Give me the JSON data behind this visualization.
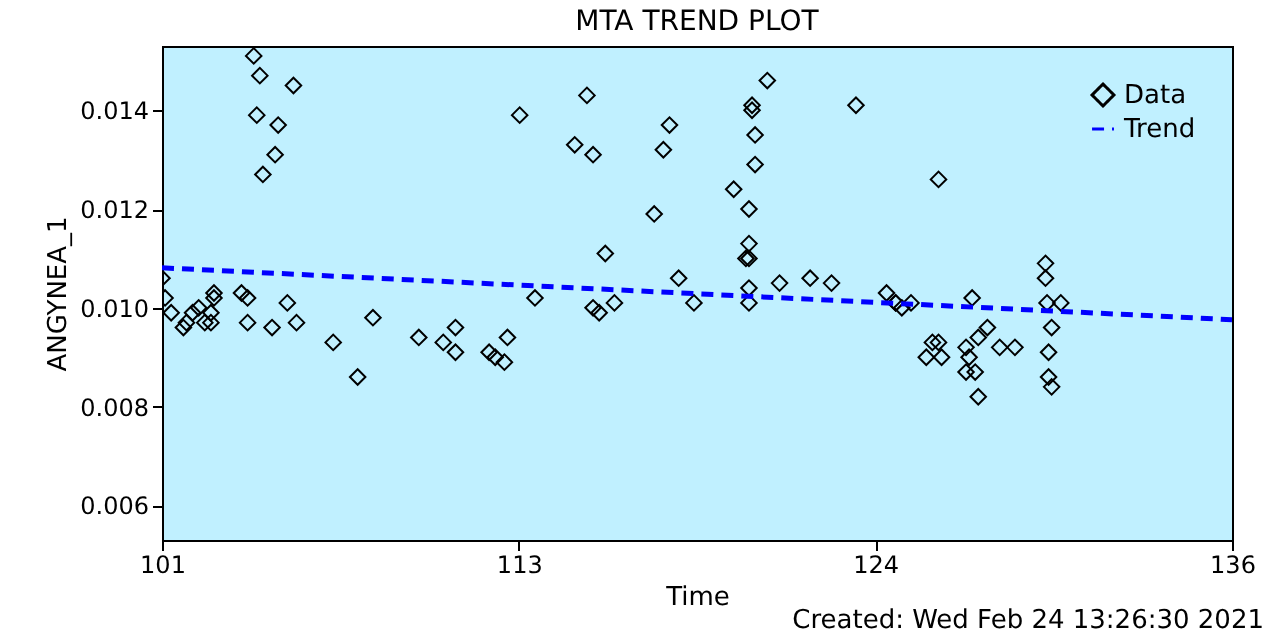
{
  "chart_data": {
    "type": "scatter",
    "title": "MTA TREND PLOT",
    "xlabel": "Time",
    "ylabel": "ANGYNEA_1",
    "annotations": [
      "Created: Wed Feb 24 13:26:30 2021"
    ],
    "xlim": [
      101,
      136
    ],
    "xticks": [
      101,
      {
        "value": 112.67,
        "label": "113"
      },
      {
        "value": 124.33,
        "label": "124"
      },
      136
    ],
    "ylim": [
      0.0053,
      0.0153
    ],
    "yticks": [
      0.006,
      0.008,
      {
        "value": 0.01,
        "label": "0.010"
      },
      0.012,
      0.014
    ],
    "grid": false,
    "legend": "top right",
    "series": [
      {
        "name": "Data",
        "color": "#000000",
        "marker": "diamond",
        "x": [
          101.0,
          101.1,
          101.3,
          101.7,
          101.8,
          102.0,
          102.2,
          102.4,
          102.6,
          102.7,
          102.7,
          102.6,
          103.6,
          103.8,
          103.8,
          104.0,
          104.2,
          104.1,
          104.3,
          104.7,
          104.8,
          105.3,
          104.6,
          105.1,
          105.4,
          106.6,
          107.4,
          107.9,
          109.4,
          110.2,
          110.6,
          110.6,
          111.7,
          111.9,
          112.2,
          112.3,
          112.7,
          113.2,
          114.9,
          114.5,
          115.1,
          115.5,
          115.1,
          115.3,
          115.8,
          117.1,
          117.4,
          117.6,
          117.9,
          118.4,
          119.7,
          120.2,
          120.2,
          120.1,
          120.2,
          120.2,
          120.2,
          120.3,
          120.3,
          120.4,
          120.4,
          120.8,
          121.2,
          122.2,
          122.9,
          123.7,
          124.7,
          125.0,
          125.0,
          125.2,
          125.5,
          126.4,
          126.2,
          126.4,
          126.0,
          126.5,
          127.5,
          128.0,
          127.7,
          127.3,
          127.4,
          127.3,
          127.6,
          127.7,
          128.4,
          128.9,
          129.9,
          129.9,
          129.95,
          130.4,
          130.1,
          130.0,
          130.0,
          130.1
        ],
        "values": [
          0.0106,
          0.0102,
          0.0099,
          0.0096,
          0.0097,
          0.0099,
          0.01,
          0.0097,
          0.0099,
          0.0102,
          0.0103,
          0.0097,
          0.0103,
          0.0102,
          0.0097,
          0.0151,
          0.0147,
          0.0139,
          0.0127,
          0.0131,
          0.0137,
          0.0145,
          0.0096,
          0.0101,
          0.0097,
          0.0093,
          0.0086,
          0.0098,
          0.0094,
          0.0093,
          0.0096,
          0.0091,
          0.0091,
          0.009,
          0.0089,
          0.0094,
          0.0139,
          0.0102,
          0.0143,
          0.0133,
          0.0131,
          0.0111,
          0.01,
          0.0099,
          0.0101,
          0.0119,
          0.0132,
          0.0137,
          0.0106,
          0.0101,
          0.0124,
          0.012,
          0.0113,
          0.011,
          0.011,
          0.0104,
          0.0101,
          0.0141,
          0.014,
          0.0135,
          0.0129,
          0.0146,
          0.0105,
          0.0106,
          0.0105,
          0.0141,
          0.0103,
          0.0101,
          0.0101,
          0.01,
          0.0101,
          0.0126,
          0.0093,
          0.0093,
          0.009,
          0.009,
          0.0102,
          0.0096,
          0.0094,
          0.0092,
          0.009,
          0.0087,
          0.0087,
          0.0082,
          0.0092,
          0.0092,
          0.0109,
          0.0106,
          0.0101,
          0.0101,
          0.0096,
          0.0091,
          0.0086,
          0.0084
        ]
      },
      {
        "name": "Trend",
        "color": "#0000ff",
        "type": "line",
        "marker": "none",
        "line_style": "dashed",
        "x": [
          101,
          136
        ],
        "values": [
          0.01081,
          0.00976
        ]
      }
    ]
  }
}
